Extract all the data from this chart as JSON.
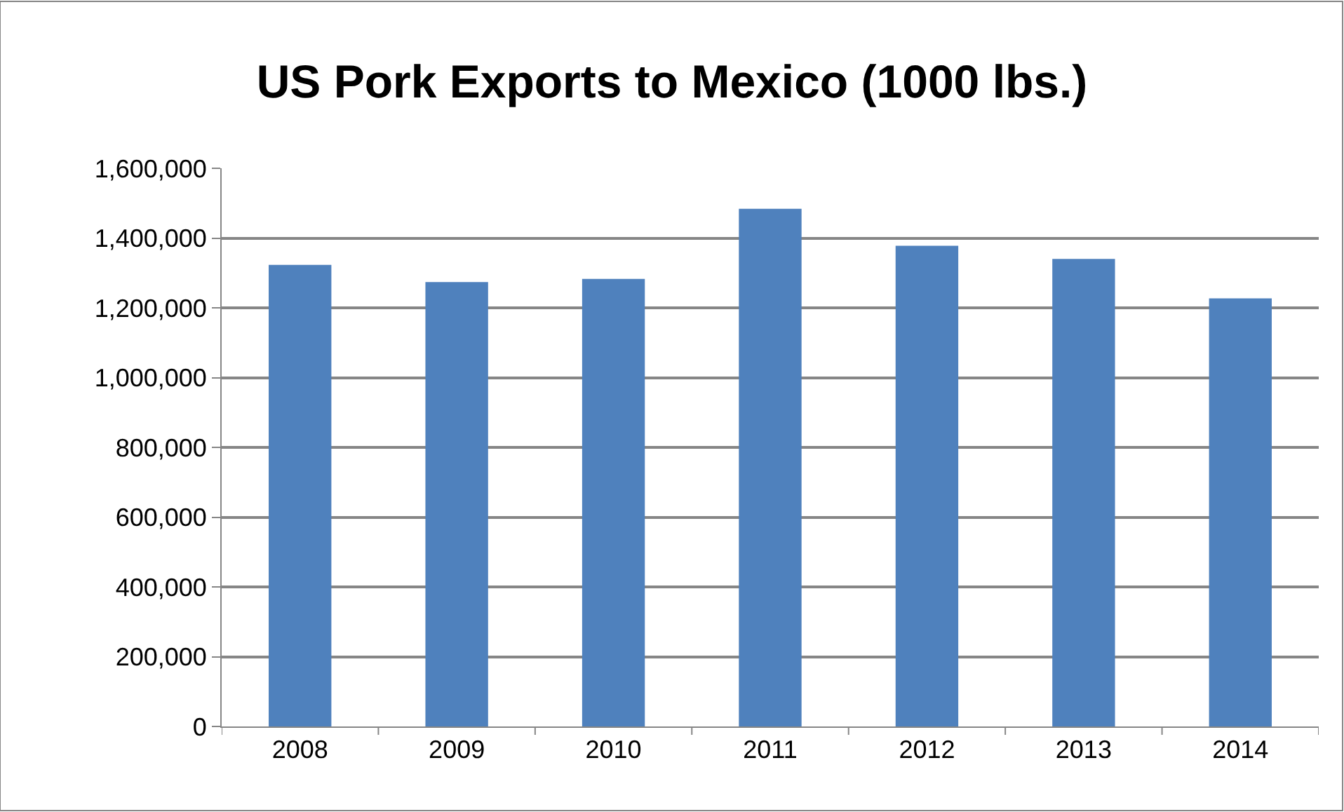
{
  "chart_data": {
    "type": "bar",
    "title": "US Pork Exports to Mexico (1000 lbs.)",
    "categories": [
      "2008",
      "2009",
      "2010",
      "2011",
      "2012",
      "2013",
      "2014"
    ],
    "values": [
      1323000,
      1274000,
      1283000,
      1484000,
      1378000,
      1340000,
      1227000
    ],
    "color": "#4f81bd",
    "ylim": [
      0,
      1600000
    ],
    "yticks": [
      {
        "value": 0,
        "label": "0"
      },
      {
        "value": 200000,
        "label": "200,000"
      },
      {
        "value": 400000,
        "label": "400,000"
      },
      {
        "value": 600000,
        "label": "600,000"
      },
      {
        "value": 800000,
        "label": "800,000"
      },
      {
        "value": 1000000,
        "label": "1,000,000"
      },
      {
        "value": 1200000,
        "label": "1,200,000"
      },
      {
        "value": 1400000,
        "label": "1,400,000"
      },
      {
        "value": 1600000,
        "label": "1,600,000"
      }
    ],
    "grid": "y"
  }
}
